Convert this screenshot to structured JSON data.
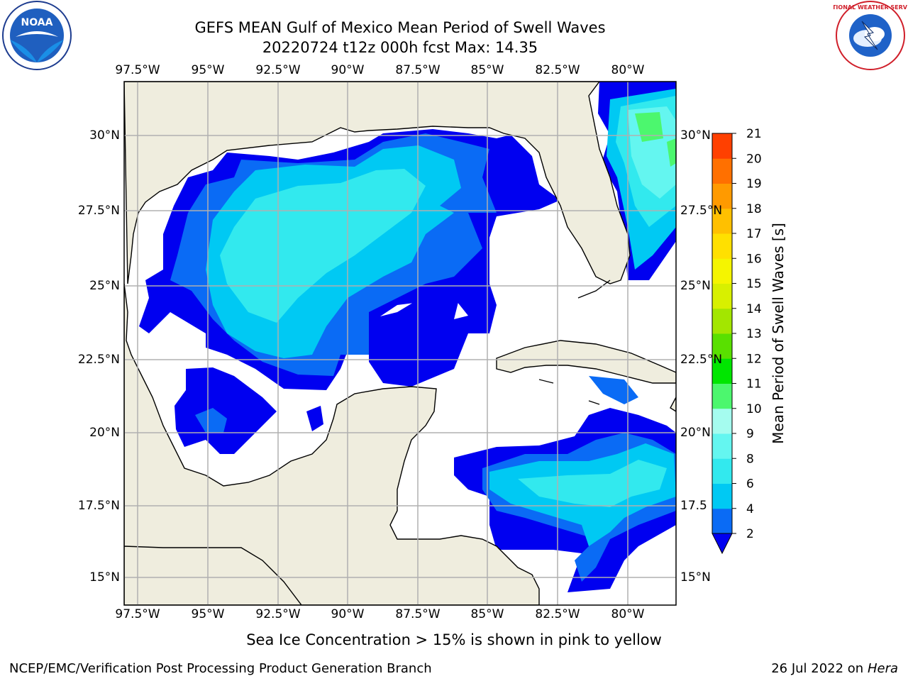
{
  "header": {
    "title_line1": "GEFS MEAN Gulf of Mexico Mean Period of Swell Waves",
    "title_line2": "20220724 t12z 000h fcst   Max: 14.35"
  },
  "map": {
    "region": "Gulf of Mexico",
    "x_tick_labels": [
      "97.5°W",
      "95°W",
      "92.5°W",
      "90°W",
      "87.5°W",
      "85°W",
      "82.5°W",
      "80°W"
    ],
    "y_tick_labels_left": [
      "30°N",
      "27.5°N",
      "25°N",
      "22.5°N",
      "20°N",
      "17.5°N",
      "15°N"
    ],
    "y_tick_labels_right": [
      "30°N",
      "27.5°N",
      "25°N",
      "22.5°N",
      "20°N",
      "17.5",
      "15°N"
    ],
    "land_color": "#efedde",
    "grid_color": "#b0b0b0"
  },
  "colorbar": {
    "label": "Mean Period of Swell Waves [s]",
    "ticks": [
      "2",
      "4",
      "6",
      "8",
      "9",
      "10",
      "11",
      "12",
      "13",
      "14",
      "15",
      "16",
      "17",
      "18",
      "19",
      "20",
      "21"
    ],
    "colors": [
      "#0a6bf5",
      "#00c9f3",
      "#32e9ee",
      "#64f6f0",
      "#a5fcef",
      "#4cf76e",
      "#00e600",
      "#59e000",
      "#a3e600",
      "#d8f000",
      "#f5f500",
      "#ffe000",
      "#ffc000",
      "#ff9a00",
      "#ff7000",
      "#ff4000",
      "#f00000"
    ],
    "under_color": "#0000f0"
  },
  "caption": "Sea Ice Concentration > 15% is shown in pink to yellow",
  "footer": {
    "left": "NCEP/EMC/Verification Post Processing Product Generation Branch",
    "right_date": "26 Jul 2022 on ",
    "right_host": "Hera"
  },
  "logos": {
    "left_logo": "NOAA",
    "right_logo": "NATIONAL WEATHER SERVICE"
  }
}
